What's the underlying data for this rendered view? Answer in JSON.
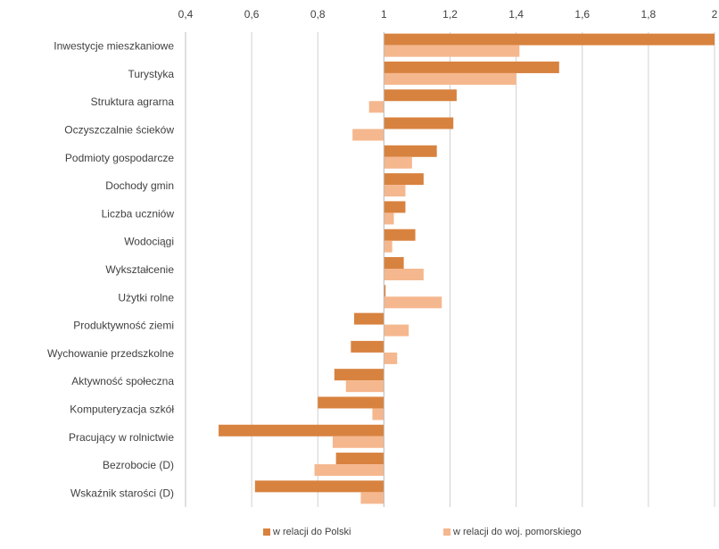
{
  "chart_data": {
    "type": "bar",
    "orientation": "horizontal",
    "baseline": 1,
    "xlim": [
      0.4,
      2.0
    ],
    "xticks": [
      "0,4",
      "0,6",
      "0,8",
      "1",
      "1,2",
      "1,4",
      "1,6",
      "1,8",
      "2"
    ],
    "xtick_values": [
      0.4,
      0.6,
      0.8,
      1.0,
      1.2,
      1.4,
      1.6,
      1.8,
      2.0
    ],
    "grid": true,
    "legend_position": "bottom",
    "categories": [
      "Inwestycje mieszkaniowe",
      "Turystyka",
      "Struktura agrarna",
      "Oczyszczalnie ścieków",
      "Podmioty gospodarcze",
      "Dochody gmin",
      "Liczba uczniów",
      "Wodociągi",
      "Wykształcenie",
      "Użytki rolne",
      "Produktywność ziemi",
      "Wychowanie przedszkolne",
      "Aktywność społeczna",
      "Komputeryzacja szkół",
      "Pracujący w rolnictwie",
      "Bezrobocie (D)",
      "Wskaźnik starości (D)"
    ],
    "series": [
      {
        "name": "w relacji do Polski",
        "color": "#d8823f",
        "values": [
          2.0,
          1.53,
          1.22,
          1.21,
          1.16,
          1.12,
          1.065,
          1.095,
          1.06,
          1.005,
          0.91,
          0.9,
          0.85,
          0.8,
          0.5,
          0.855,
          0.61
        ]
      },
      {
        "name": "w relacji do woj. pomorskiego",
        "color": "#f5b78e",
        "values": [
          1.41,
          1.4,
          0.955,
          0.905,
          1.085,
          1.065,
          1.03,
          1.025,
          1.12,
          1.175,
          1.075,
          1.04,
          0.885,
          0.965,
          0.845,
          0.79,
          0.93
        ]
      }
    ]
  }
}
